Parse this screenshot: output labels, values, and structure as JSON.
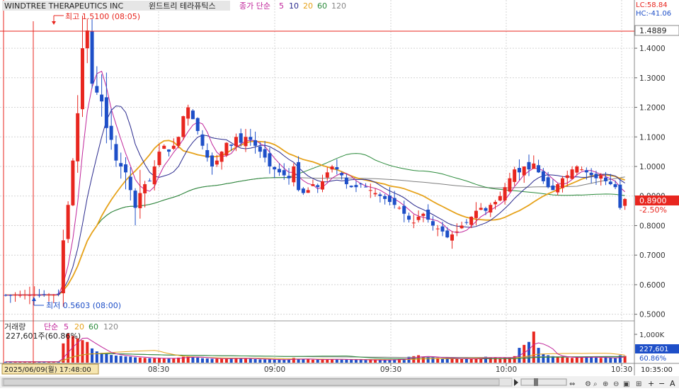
{
  "header": {
    "symbol": "WINDTREE THERAPEUTICS INC",
    "korean_name": "윈드트리 테라퓨틱스",
    "ma_label": "종가 단순",
    "ma_periods": [
      "5",
      "10",
      "20",
      "60",
      "120"
    ],
    "lc": "LC:58.84",
    "hc": "HC:-41.06"
  },
  "annotations": {
    "high": "최고 1.5100 (08:05)",
    "low": "최저 0.5603 (08:00)"
  },
  "price_axis": {
    "ticks": [
      "1.4000",
      "1.3000",
      "1.2000",
      "1.1000",
      "1.0000",
      "0.9000",
      "0.8000",
      "0.7000",
      "0.6000",
      "0.5000"
    ],
    "top_tag": "1.4889",
    "current_tag": "0.8900",
    "pct_tag": "-2.50%"
  },
  "volume_panel": {
    "title": "거래량",
    "ma_label": "단순",
    "ma_periods": [
      "5",
      "20",
      "60",
      "120"
    ],
    "current_text": "227,601주(60.86%)",
    "axis_tick": "1,000K",
    "current_tag": "227,601",
    "pct_tag": "60.86%"
  },
  "time_axis": {
    "cursor_label": "2025/06/09(월) 17:48:00",
    "ticks": [
      "08:30",
      "09:00",
      "09:30",
      "10:00",
      "10:30"
    ],
    "right_label": "10:35:00"
  },
  "colors": {
    "up": "#e8261f",
    "down": "#1e4fc8",
    "ma5": "#c0249a",
    "ma10": "#2a2a8e",
    "ma20": "#e6a21a",
    "ma60": "#2a8a3a",
    "ma120": "#7f7f7f"
  },
  "chart_data": {
    "type": "candlestick",
    "interval": "1 minute",
    "ylim": [
      0.48,
      1.52
    ],
    "high": {
      "value": 1.51,
      "time": "08:05"
    },
    "low": {
      "value": 0.5603,
      "time": "08:00"
    },
    "last": 0.89,
    "close_path": [
      [
        0,
        0.565
      ],
      [
        1,
        0.565
      ],
      [
        2,
        0.566
      ],
      [
        3,
        0.565
      ],
      [
        4,
        0.566
      ],
      [
        5,
        0.565
      ],
      [
        6,
        0.566
      ],
      [
        7,
        0.565
      ],
      [
        8,
        0.566
      ],
      [
        9,
        0.567
      ],
      [
        10,
        0.566
      ],
      [
        11,
        0.568
      ],
      [
        12,
        0.75
      ],
      [
        13,
        0.87
      ],
      [
        14,
        1.02
      ],
      [
        15,
        1.18
      ],
      [
        16,
        1.4
      ],
      [
        17,
        1.46
      ],
      [
        18,
        1.28
      ],
      [
        19,
        1.25
      ],
      [
        20,
        1.22
      ],
      [
        21,
        1.13
      ],
      [
        22,
        1.09
      ],
      [
        23,
        1.02
      ],
      [
        24,
        1.0
      ],
      [
        25,
        0.98
      ],
      [
        26,
        0.92
      ],
      [
        27,
        0.86
      ],
      [
        28,
        0.91
      ],
      [
        29,
        0.94
      ],
      [
        30,
        0.95
      ],
      [
        31,
        1.0
      ],
      [
        32,
        1.05
      ],
      [
        33,
        1.07
      ],
      [
        34,
        1.05
      ],
      [
        35,
        1.07
      ],
      [
        36,
        1.1
      ],
      [
        37,
        1.17
      ],
      [
        38,
        1.2
      ],
      [
        39,
        1.16
      ],
      [
        40,
        1.12
      ],
      [
        41,
        1.07
      ],
      [
        42,
        1.03
      ],
      [
        43,
        1.0
      ],
      [
        44,
        1.02
      ],
      [
        45,
        1.05
      ],
      [
        46,
        1.08
      ],
      [
        47,
        1.07
      ],
      [
        48,
        1.1
      ],
      [
        49,
        1.08
      ],
      [
        50,
        1.1
      ],
      [
        51,
        1.09
      ],
      [
        52,
        1.07
      ],
      [
        53,
        1.05
      ],
      [
        54,
        1.03
      ],
      [
        55,
        1.0
      ],
      [
        56,
        0.99
      ],
      [
        57,
        0.98
      ],
      [
        58,
        0.97
      ],
      [
        59,
        0.96
      ],
      [
        60,
        1.0
      ],
      [
        61,
        0.92
      ],
      [
        62,
        0.91
      ],
      [
        63,
        0.92
      ],
      [
        64,
        0.94
      ],
      [
        65,
        0.93
      ],
      [
        66,
        0.95
      ],
      [
        67,
        0.98
      ],
      [
        68,
        1.0
      ],
      [
        69,
        0.99
      ],
      [
        70,
        0.97
      ],
      [
        71,
        0.94
      ],
      [
        72,
        0.93
      ],
      [
        73,
        0.93
      ],
      [
        74,
        0.94
      ],
      [
        75,
        0.93
      ],
      [
        76,
        0.92
      ],
      [
        77,
        0.91
      ],
      [
        78,
        0.9
      ],
      [
        79,
        0.89
      ],
      [
        80,
        0.88
      ],
      [
        81,
        0.87
      ],
      [
        82,
        0.86
      ],
      [
        83,
        0.84
      ],
      [
        84,
        0.82
      ],
      [
        85,
        0.81
      ],
      [
        86,
        0.83
      ],
      [
        87,
        0.84
      ],
      [
        88,
        0.82
      ],
      [
        89,
        0.8
      ],
      [
        90,
        0.79
      ],
      [
        91,
        0.78
      ],
      [
        92,
        0.76
      ],
      [
        93,
        0.77
      ],
      [
        94,
        0.78
      ],
      [
        95,
        0.8
      ],
      [
        96,
        0.81
      ],
      [
        97,
        0.83
      ],
      [
        98,
        0.85
      ],
      [
        99,
        0.86
      ],
      [
        100,
        0.85
      ],
      [
        101,
        0.87
      ],
      [
        102,
        0.88
      ],
      [
        103,
        0.9
      ],
      [
        104,
        0.93
      ],
      [
        105,
        0.96
      ],
      [
        106,
        0.99
      ],
      [
        107,
        0.98
      ],
      [
        108,
        1.0
      ],
      [
        109,
        0.99
      ],
      [
        110,
        1.01
      ],
      [
        111,
        0.98
      ],
      [
        112,
        0.95
      ],
      [
        113,
        0.93
      ],
      [
        114,
        0.92
      ],
      [
        115,
        0.94
      ],
      [
        116,
        0.96
      ],
      [
        117,
        0.97
      ],
      [
        118,
        0.99
      ],
      [
        119,
        1.0
      ],
      [
        120,
        0.99
      ],
      [
        121,
        0.98
      ],
      [
        122,
        0.97
      ],
      [
        123,
        0.96
      ],
      [
        124,
        0.97
      ],
      [
        125,
        0.95
      ],
      [
        126,
        0.94
      ],
      [
        127,
        0.93
      ],
      [
        128,
        0.86
      ],
      [
        129,
        0.89
      ]
    ],
    "volume_ylim": [
      0,
      1100
    ],
    "volume_unit": "K shares",
    "volume": [
      30,
      30,
      30,
      30,
      30,
      30,
      30,
      30,
      30,
      30,
      30,
      30,
      650,
      980,
      900,
      820,
      760,
      700,
      480,
      380,
      330,
      300,
      260,
      240,
      230,
      210,
      200,
      180,
      170,
      160,
      150,
      150,
      150,
      140,
      140,
      150,
      170,
      200,
      220,
      190,
      170,
      150,
      140,
      130,
      130,
      130,
      140,
      150,
      150,
      140,
      140,
      130,
      120,
      110,
      110,
      110,
      100,
      100,
      100,
      110,
      160,
      120,
      110,
      110,
      100,
      100,
      110,
      120,
      120,
      110,
      100,
      100,
      100,
      100,
      100,
      90,
      90,
      90,
      90,
      90,
      100,
      110,
      120,
      140,
      200,
      220,
      250,
      200,
      180,
      170,
      160,
      150,
      170,
      140,
      130,
      120,
      120,
      130,
      150,
      180,
      200,
      170,
      160,
      150,
      160,
      180,
      220,
      500,
      600,
      700,
      1050,
      500,
      300,
      250,
      220,
      200,
      180,
      170,
      160,
      180,
      190,
      200,
      180,
      170,
      160,
      170,
      160,
      150,
      250,
      228
    ]
  }
}
